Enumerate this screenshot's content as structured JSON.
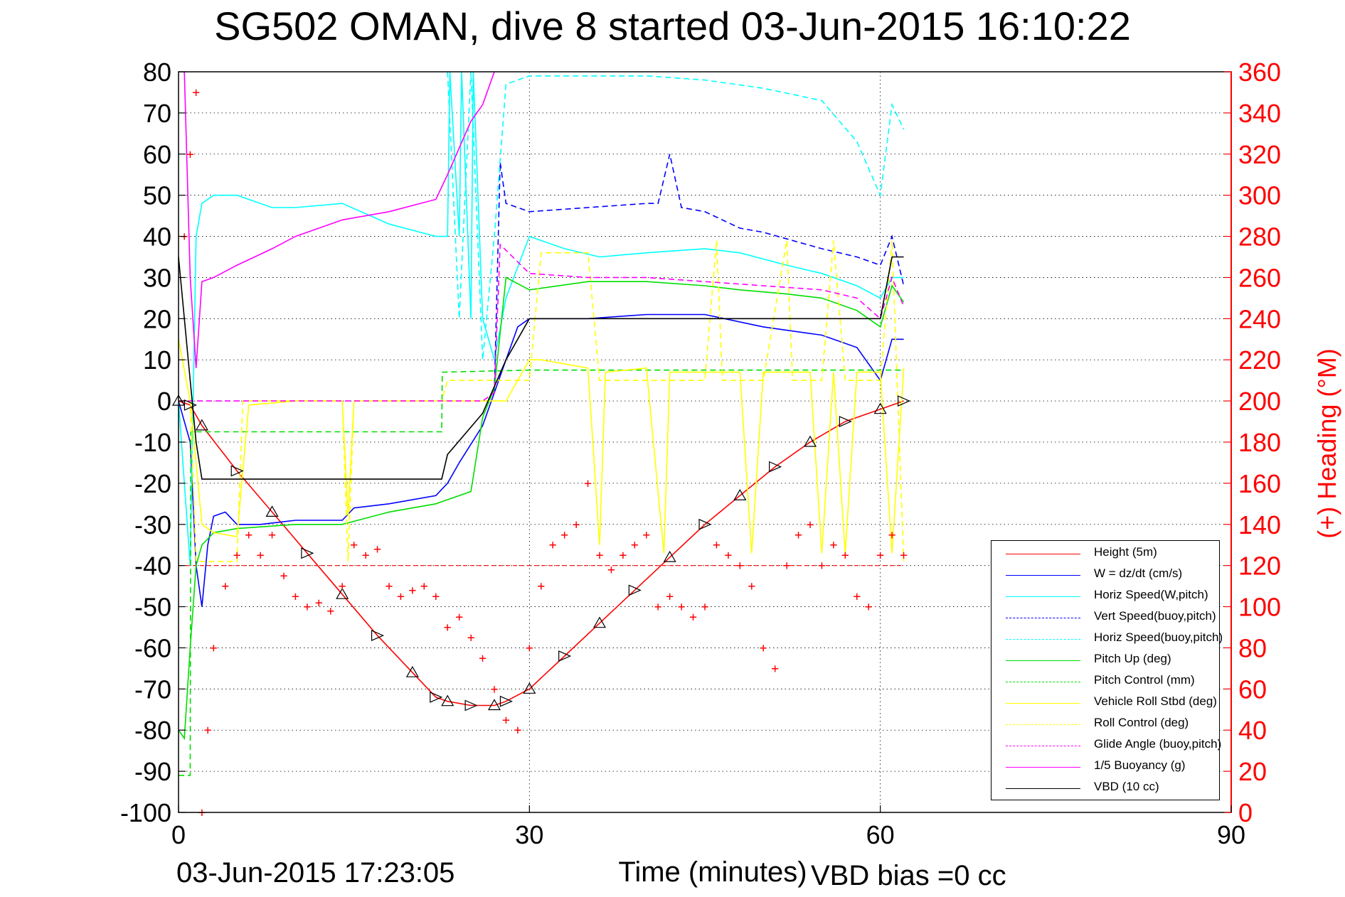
{
  "title": "SG502 OMAN, dive 8 started 03-Jun-2015 16:10:22",
  "footer": {
    "plot_time": "03-Jun-2015 17:23:05",
    "vbd_bias": "VBD bias =0 cc"
  },
  "chart_data": {
    "type": "line",
    "xlabel": "Time (minutes)",
    "ylabel": "",
    "y2label": "(+) Heading (°M)",
    "xlim": [
      0,
      90
    ],
    "ylim": [
      -100,
      80
    ],
    "y2lim": [
      0,
      360
    ],
    "xticks": [
      0,
      30,
      60,
      90
    ],
    "yticks": [
      80,
      70,
      60,
      50,
      40,
      30,
      20,
      10,
      0,
      -10,
      -20,
      -30,
      -40,
      -50,
      -60,
      -70,
      -80,
      -90,
      -100
    ],
    "y2ticks": [
      360,
      340,
      320,
      300,
      280,
      260,
      240,
      220,
      200,
      180,
      160,
      140,
      120,
      100,
      80,
      60,
      40,
      20,
      0
    ],
    "grid": true,
    "legend_position": "bottom-right",
    "colors": {
      "height": "#ff0000",
      "w": "#0000ff",
      "horiz_w": "#00ffff",
      "vert_buoy": "#0000ff",
      "horiz_buoy": "#00ffff",
      "pitch_up": "#00dd00",
      "pitch_ctrl": "#00dd00",
      "roll": "#ffff00",
      "roll_ctrl": "#ffff00",
      "glide": "#ff00ff",
      "buoy": "#ff00ff",
      "vbd": "#000000",
      "heading": "#ff0000",
      "right_axis": "#ff0000"
    },
    "series": [
      {
        "name": "Height (5m)",
        "color": "#ff0000",
        "dash": false,
        "x": [
          0,
          1,
          2,
          5,
          8,
          11,
          14,
          17,
          20,
          22,
          23,
          25,
          27,
          28,
          30,
          33,
          36,
          39,
          42,
          45,
          48,
          51,
          54,
          57,
          60,
          62
        ],
        "y": [
          0,
          -1,
          -6,
          -17,
          -27,
          -37,
          -47,
          -57,
          -66,
          -72,
          -73,
          -74,
          -74,
          -73,
          -70,
          -62,
          -54,
          -46,
          -38,
          -30,
          -23,
          -16,
          -10,
          -5,
          -2,
          0
        ]
      },
      {
        "name": "W = dz/dt (cm/s)",
        "color": "#0000ff",
        "dash": false,
        "x": [
          0,
          0.5,
          1,
          1.5,
          2,
          2.5,
          3,
          4,
          5,
          7,
          10,
          14,
          15,
          18,
          22,
          23,
          24,
          26,
          27,
          28,
          29,
          30,
          35,
          40,
          45,
          50,
          55,
          58,
          60,
          61,
          62
        ],
        "y": [
          0,
          -5,
          -10,
          -40,
          -50,
          -35,
          -28,
          -27,
          -30,
          -30,
          -29,
          -29,
          -26,
          -25,
          -23,
          -20,
          -15,
          -6,
          2,
          10,
          18,
          20,
          20,
          21,
          21,
          18,
          16,
          13,
          5,
          15,
          15
        ]
      },
      {
        "name": "Horiz Speed(W,pitch)",
        "color": "#00ffff",
        "dash": false,
        "x": [
          0,
          0.5,
          1,
          1.5,
          2,
          3,
          5,
          8,
          10,
          14,
          18,
          22,
          23,
          23.2,
          24,
          24.2,
          25,
          25.2,
          26,
          27,
          28,
          30,
          33,
          36,
          40,
          45,
          48,
          52,
          55,
          58,
          60,
          61,
          62
        ],
        "y": [
          0,
          -20,
          -40,
          40,
          48,
          50,
          50,
          47,
          47,
          48,
          43,
          40,
          40,
          80,
          40,
          80,
          20,
          80,
          20,
          10,
          25,
          40,
          37,
          35,
          36,
          37,
          36,
          33,
          31,
          28,
          25,
          30,
          30
        ]
      },
      {
        "name": "Vert Speed(buoy,pitch)",
        "color": "#0000ff",
        "dash": true,
        "x": [
          27,
          27.5,
          28,
          30,
          35,
          40,
          41,
          42,
          43,
          45,
          48,
          50,
          55,
          58,
          60,
          61,
          62
        ],
        "y": [
          2,
          58,
          48,
          46,
          47,
          48,
          48,
          60,
          47,
          46,
          42,
          41,
          37,
          35,
          33,
          40,
          28
        ]
      },
      {
        "name": "Horiz Speed(buoy,pitch)",
        "color": "#00ffff",
        "dash": true,
        "x": [
          23,
          24,
          25,
          26,
          27,
          28,
          30,
          35,
          40,
          45,
          50,
          55,
          58,
          60,
          61,
          62
        ],
        "y": [
          80,
          20,
          80,
          10,
          40,
          77,
          79,
          79,
          79,
          78,
          76,
          73,
          63,
          50,
          72,
          66
        ]
      },
      {
        "name": "Pitch Up (deg)",
        "color": "#00dd00",
        "dash": false,
        "x": [
          0,
          0.5,
          1,
          1.5,
          2,
          3,
          5,
          10,
          14,
          18,
          22,
          23,
          25,
          26,
          27,
          28,
          30,
          35,
          40,
          45,
          48,
          52,
          55,
          58,
          60,
          61,
          62
        ],
        "y": [
          -80,
          -82,
          -60,
          -40,
          -35,
          -32,
          -31,
          -30,
          -30,
          -27,
          -25,
          -24,
          -22,
          -4,
          3,
          30,
          27,
          29,
          29,
          28,
          27,
          26,
          25,
          22,
          18,
          28,
          24
        ]
      },
      {
        "name": "Pitch Control (mm)",
        "color": "#00dd00",
        "dash": true,
        "x": [
          0,
          1,
          1.05,
          2,
          22.5,
          22.55,
          30,
          62
        ],
        "y": [
          -91,
          -91,
          -7.5,
          -7.5,
          -7.5,
          7,
          7.5,
          7.5
        ]
      },
      {
        "name": "Vehicle Roll Stbd (deg)",
        "color": "#ffff00",
        "dash": false,
        "x": [
          0,
          1,
          2,
          3,
          5,
          6,
          10,
          14,
          14.5,
          15,
          22,
          23,
          25,
          28,
          30,
          31,
          35,
          36,
          36.5,
          40,
          41.5,
          42,
          48,
          49,
          50,
          54,
          55,
          56,
          57,
          58,
          60,
          61,
          62
        ],
        "y": [
          15,
          0,
          -30,
          -32,
          -33,
          -1,
          0,
          0,
          -28,
          0,
          0,
          0,
          0,
          0,
          10,
          10,
          8,
          -35,
          7,
          8,
          -37,
          7,
          7,
          -37,
          7,
          7,
          -37,
          7,
          -37,
          7,
          7,
          -37,
          8
        ]
      },
      {
        "name": "Roll Control (deg)",
        "color": "#ffff00",
        "dash": true,
        "x": [
          0,
          1,
          1.5,
          2,
          5,
          5.5,
          14,
          14.5,
          15,
          22.5,
          23,
          28,
          30,
          31,
          35,
          36,
          36.5,
          45,
          46,
          46.5,
          50,
          52,
          52.5,
          55,
          56,
          57,
          60,
          61,
          62
        ],
        "y": [
          0,
          0,
          -39,
          -39,
          -39,
          0,
          0,
          -39,
          0,
          0,
          5,
          5,
          5,
          36,
          36,
          5,
          5,
          5,
          39,
          5,
          5,
          39,
          5,
          5,
          39,
          5,
          5,
          39,
          -39
        ]
      },
      {
        "name": "Glide Angle (buoy,pitch)",
        "color": "#ff00ff",
        "dash": true,
        "x": [
          0,
          22,
          23,
          26,
          27,
          27.5,
          30,
          35,
          40,
          45,
          50,
          55,
          58,
          60,
          61,
          62
        ],
        "y": [
          0,
          0,
          0,
          0,
          2,
          38,
          31,
          30,
          30,
          29,
          28,
          27,
          25,
          20,
          30,
          23
        ]
      },
      {
        "name": "1/5 Buoyancy (g)",
        "color": "#ff00ff",
        "dash": false,
        "x": [
          0.5,
          1,
          1.5,
          2,
          3,
          5,
          8,
          10,
          14,
          18,
          22,
          23,
          25,
          26,
          27
        ],
        "y": [
          80,
          30,
          8,
          29,
          30,
          33,
          37,
          40,
          44,
          46,
          49,
          55,
          68,
          72,
          80
        ]
      },
      {
        "name": "VBD (10 cc)",
        "color": "#000000",
        "dash": false,
        "x": [
          0,
          1,
          1.5,
          2,
          5,
          10,
          15,
          22.5,
          23,
          26,
          28,
          30,
          45,
          50,
          55,
          60,
          61,
          62
        ],
        "y": [
          35,
          5,
          -10,
          -19,
          -19,
          -19,
          -19,
          -19,
          -13,
          -3,
          10,
          20,
          20,
          20,
          20,
          20,
          35,
          35
        ]
      }
    ],
    "heading_series": {
      "name": "Heading (°M)",
      "color": "#ff0000",
      "marker": "+",
      "axis": "right",
      "x": [
        0.5,
        1,
        1.5,
        2,
        2.5,
        3,
        4,
        5,
        6,
        7,
        8,
        9,
        10,
        11,
        12,
        13,
        14,
        15,
        16,
        17,
        18,
        19,
        20,
        21,
        22,
        23,
        24,
        25,
        26,
        27,
        28,
        29,
        30,
        31,
        32,
        33,
        34,
        35,
        36,
        37,
        38,
        39,
        40,
        41,
        42,
        43,
        44,
        45,
        46,
        47,
        48,
        49,
        50,
        51,
        52,
        53,
        54,
        55,
        56,
        57,
        58,
        59,
        60,
        61,
        62
      ],
      "y": [
        280,
        320,
        350,
        0,
        40,
        80,
        110,
        125,
        135,
        125,
        135,
        115,
        105,
        100,
        102,
        98,
        110,
        130,
        125,
        128,
        110,
        105,
        108,
        110,
        105,
        90,
        95,
        85,
        75,
        60,
        45,
        40,
        80,
        110,
        130,
        135,
        140,
        160,
        125,
        118,
        125,
        130,
        135,
        100,
        105,
        100,
        95,
        100,
        130,
        125,
        120,
        110,
        80,
        70,
        120,
        135,
        140,
        120,
        130,
        125,
        105,
        100,
        125,
        135,
        125
      ]
    },
    "reference_lines": [
      {
        "name": "height-threshold",
        "y": -40,
        "color": "#ff0000",
        "dash": true
      }
    ]
  },
  "legend": [
    {
      "label": "Height (5m)",
      "color": "#ff0000",
      "dash": false
    },
    {
      "label": "W = dz/dt (cm/s)",
      "color": "#0000ff",
      "dash": false
    },
    {
      "label": "Horiz Speed(W,pitch)",
      "color": "#00ffff",
      "dash": false
    },
    {
      "label": "Vert Speed(buoy,pitch)",
      "color": "#0000ff",
      "dash": true
    },
    {
      "label": "Horiz Speed(buoy,pitch)",
      "color": "#00ffff",
      "dash": true
    },
    {
      "label": "Pitch Up (deg)",
      "color": "#00dd00",
      "dash": false
    },
    {
      "label": "Pitch Control (mm)",
      "color": "#00dd00",
      "dash": true
    },
    {
      "label": "Vehicle Roll Stbd (deg)",
      "color": "#ffff00",
      "dash": false
    },
    {
      "label": "Roll Control (deg)",
      "color": "#ffff00",
      "dash": true
    },
    {
      "label": "Glide Angle (buoy,pitch)",
      "color": "#ff00ff",
      "dash": true
    },
    {
      "label": "1/5 Buoyancy (g)",
      "color": "#ff00ff",
      "dash": false
    },
    {
      "label": "VBD (10 cc)",
      "color": "#000000",
      "dash": false
    }
  ]
}
